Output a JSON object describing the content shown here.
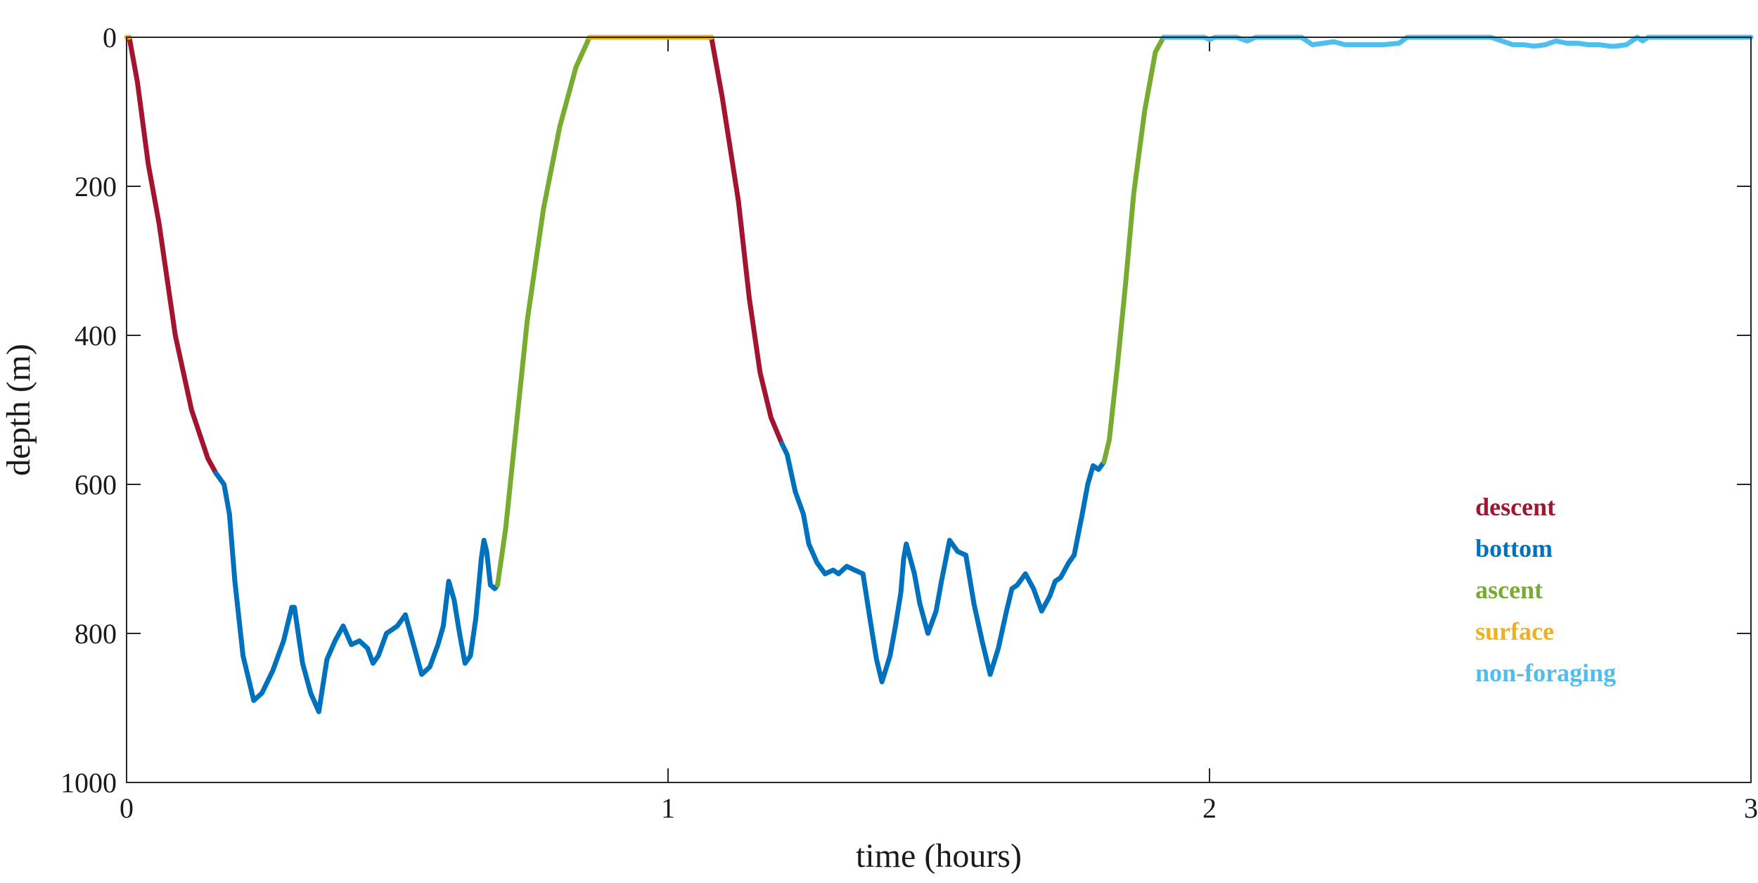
{
  "chart_data": {
    "type": "line",
    "title": "",
    "xlabel": "time (hours)",
    "ylabel": "depth (m)",
    "xlim": [
      0,
      3
    ],
    "ylim": [
      0,
      1000
    ],
    "y_reversed": true,
    "grid": false,
    "legend_placement": "bottom-right",
    "legend_style": "colored text labels",
    "x_ticks": [
      0,
      1,
      2,
      3
    ],
    "x_tick_labels": [
      "0",
      "1",
      "2",
      "3"
    ],
    "y_ticks": [
      0,
      200,
      400,
      600,
      800,
      1000
    ],
    "y_tick_labels": [
      "0",
      "200",
      "400",
      "600",
      "800",
      "1000"
    ],
    "series": [
      {
        "name": "descent",
        "color": "#A2142F",
        "segments": [
          [
            [
              0.005,
              0
            ],
            [
              0.02,
              60
            ],
            [
              0.04,
              170
            ],
            [
              0.06,
              250
            ],
            [
              0.09,
              400
            ],
            [
              0.12,
              500
            ],
            [
              0.15,
              565
            ],
            [
              0.165,
              585
            ]
          ],
          [
            [
              1.08,
              0
            ],
            [
              1.1,
              80
            ],
            [
              1.13,
              220
            ],
            [
              1.15,
              350
            ],
            [
              1.17,
              450
            ],
            [
              1.19,
              510
            ],
            [
              1.21,
              545
            ]
          ]
        ]
      },
      {
        "name": "bottom",
        "color": "#0072BD",
        "segments": [
          [
            [
              0.165,
              585
            ],
            [
              0.18,
              600
            ],
            [
              0.19,
              640
            ],
            [
              0.2,
              730
            ],
            [
              0.215,
              830
            ],
            [
              0.235,
              890
            ],
            [
              0.25,
              880
            ],
            [
              0.27,
              850
            ],
            [
              0.29,
              810
            ],
            [
              0.305,
              765
            ],
            [
              0.31,
              765
            ],
            [
              0.325,
              840
            ],
            [
              0.34,
              880
            ],
            [
              0.355,
              905
            ],
            [
              0.37,
              835
            ],
            [
              0.385,
              810
            ],
            [
              0.4,
              790
            ],
            [
              0.415,
              815
            ],
            [
              0.43,
              810
            ],
            [
              0.445,
              820
            ],
            [
              0.455,
              840
            ],
            [
              0.465,
              830
            ],
            [
              0.48,
              800
            ],
            [
              0.49,
              795
            ],
            [
              0.5,
              790
            ],
            [
              0.515,
              775
            ],
            [
              0.53,
              815
            ],
            [
              0.545,
              855
            ],
            [
              0.56,
              845
            ],
            [
              0.575,
              815
            ],
            [
              0.585,
              790
            ],
            [
              0.595,
              730
            ],
            [
              0.605,
              755
            ],
            [
              0.615,
              800
            ],
            [
              0.625,
              840
            ],
            [
              0.635,
              830
            ],
            [
              0.645,
              780
            ],
            [
              0.65,
              740
            ],
            [
              0.655,
              700
            ],
            [
              0.66,
              675
            ],
            [
              0.665,
              690
            ],
            [
              0.672,
              735
            ],
            [
              0.68,
              740
            ],
            [
              0.685,
              735
            ]
          ],
          [
            [
              1.21,
              545
            ],
            [
              1.22,
              560
            ],
            [
              1.235,
              610
            ],
            [
              1.25,
              640
            ],
            [
              1.26,
              680
            ],
            [
              1.275,
              705
            ],
            [
              1.29,
              720
            ],
            [
              1.305,
              715
            ],
            [
              1.315,
              720
            ],
            [
              1.33,
              710
            ],
            [
              1.345,
              715
            ],
            [
              1.36,
              720
            ],
            [
              1.375,
              790
            ],
            [
              1.385,
              835
            ],
            [
              1.395,
              865
            ],
            [
              1.41,
              830
            ],
            [
              1.42,
              790
            ],
            [
              1.43,
              745
            ],
            [
              1.435,
              700
            ],
            [
              1.44,
              680
            ],
            [
              1.455,
              720
            ],
            [
              1.465,
              760
            ],
            [
              1.48,
              800
            ],
            [
              1.495,
              770
            ],
            [
              1.505,
              730
            ],
            [
              1.52,
              675
            ],
            [
              1.535,
              690
            ],
            [
              1.55,
              695
            ],
            [
              1.565,
              760
            ],
            [
              1.58,
              810
            ],
            [
              1.595,
              855
            ],
            [
              1.61,
              820
            ],
            [
              1.625,
              770
            ],
            [
              1.635,
              740
            ],
            [
              1.645,
              735
            ],
            [
              1.66,
              720
            ],
            [
              1.675,
              740
            ],
            [
              1.69,
              770
            ],
            [
              1.705,
              750
            ],
            [
              1.715,
              730
            ],
            [
              1.725,
              725
            ],
            [
              1.74,
              705
            ],
            [
              1.75,
              695
            ],
            [
              1.765,
              640
            ],
            [
              1.775,
              600
            ],
            [
              1.785,
              575
            ],
            [
              1.795,
              580
            ],
            [
              1.805,
              570
            ]
          ]
        ]
      },
      {
        "name": "ascent",
        "color": "#77AC30",
        "segments": [
          [
            [
              0.685,
              735
            ],
            [
              0.7,
              660
            ],
            [
              0.72,
              520
            ],
            [
              0.74,
              380
            ],
            [
              0.77,
              230
            ],
            [
              0.8,
              120
            ],
            [
              0.83,
              40
            ],
            [
              0.855,
              0
            ]
          ],
          [
            [
              1.805,
              570
            ],
            [
              1.815,
              540
            ],
            [
              1.83,
              440
            ],
            [
              1.845,
              330
            ],
            [
              1.86,
              210
            ],
            [
              1.88,
              100
            ],
            [
              1.9,
              20
            ],
            [
              1.915,
              0
            ]
          ]
        ]
      },
      {
        "name": "surface",
        "color": "#EDB120",
        "segments": [
          [
            [
              0.0,
              0
            ],
            [
              0.005,
              0
            ]
          ],
          [
            [
              0.855,
              0
            ],
            [
              1.08,
              0
            ]
          ]
        ]
      },
      {
        "name": "non-foraging",
        "color": "#4DBEEE",
        "segments": [
          [
            [
              1.915,
              0
            ],
            [
              1.95,
              0
            ],
            [
              1.99,
              0
            ],
            [
              2.0,
              3
            ],
            [
              2.01,
              0
            ],
            [
              2.05,
              0
            ],
            [
              2.07,
              5
            ],
            [
              2.085,
              0
            ],
            [
              2.12,
              0
            ],
            [
              2.17,
              0
            ],
            [
              2.18,
              5
            ],
            [
              2.19,
              10
            ],
            [
              2.21,
              8
            ],
            [
              2.23,
              6
            ],
            [
              2.25,
              10
            ],
            [
              2.28,
              10
            ],
            [
              2.32,
              10
            ],
            [
              2.35,
              8
            ],
            [
              2.365,
              0
            ],
            [
              2.4,
              0
            ],
            [
              2.45,
              0
            ],
            [
              2.5,
              0
            ],
            [
              2.52,
              0
            ],
            [
              2.54,
              5
            ],
            [
              2.56,
              10
            ],
            [
              2.58,
              10
            ],
            [
              2.6,
              12
            ],
            [
              2.62,
              10
            ],
            [
              2.64,
              5
            ],
            [
              2.66,
              8
            ],
            [
              2.68,
              8
            ],
            [
              2.7,
              10
            ],
            [
              2.72,
              10
            ],
            [
              2.74,
              12
            ],
            [
              2.75,
              12
            ],
            [
              2.77,
              10
            ],
            [
              2.79,
              0
            ],
            [
              2.8,
              5
            ],
            [
              2.81,
              0
            ],
            [
              2.85,
              0
            ],
            [
              2.9,
              0
            ],
            [
              2.95,
              0
            ],
            [
              3.0,
              0
            ]
          ]
        ]
      }
    ]
  }
}
